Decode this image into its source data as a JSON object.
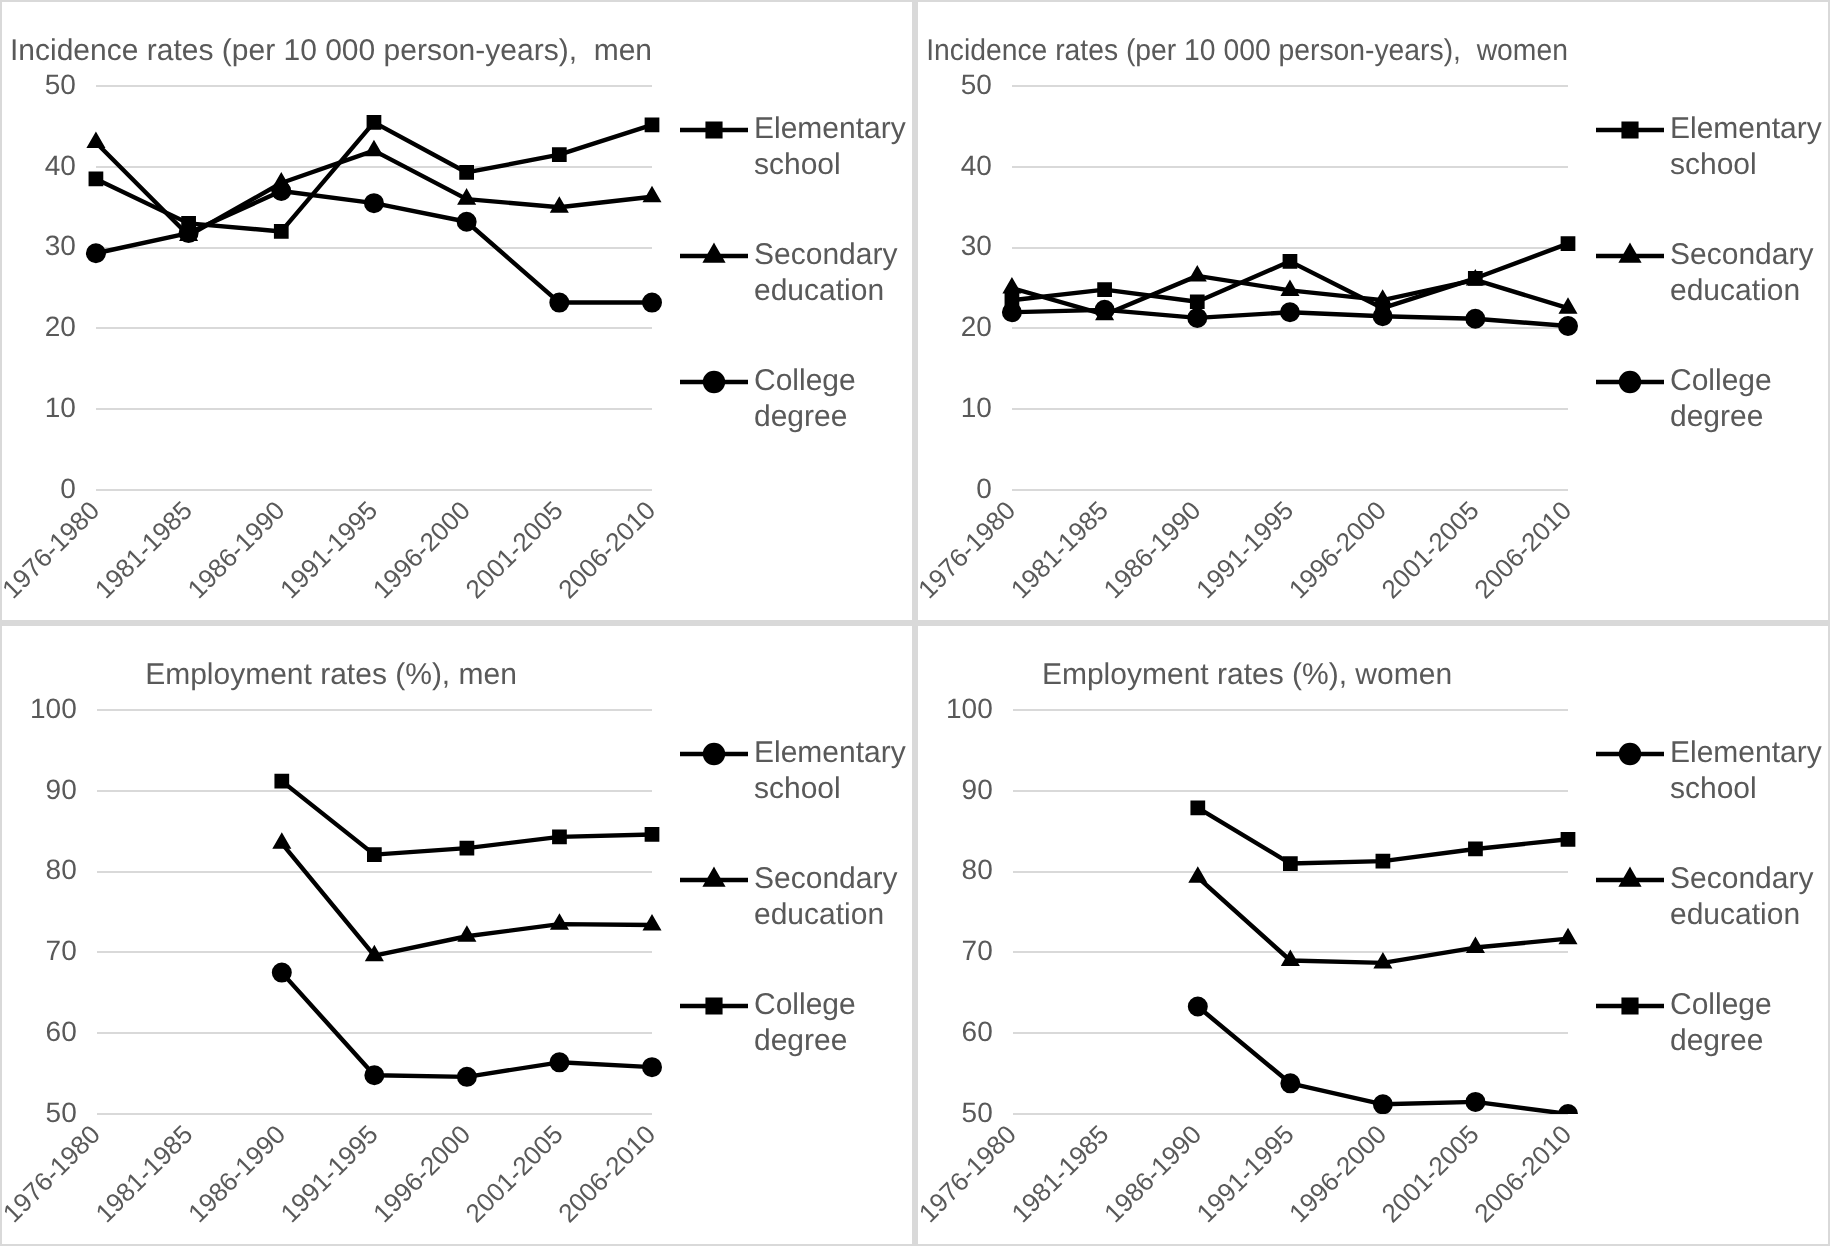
{
  "chart_data": [
    {
      "type": "line",
      "title": "Incidence rates (per 10 000 person-years),  men",
      "categories": [
        "1976-1980",
        "1981-1985",
        "1986-1990",
        "1991-1995",
        "1996-2000",
        "2001-2005",
        "2006-2010"
      ],
      "ylim": [
        0,
        50
      ],
      "yticks": [
        0,
        10,
        20,
        30,
        40,
        50
      ],
      "grid": "y",
      "legend": "right",
      "series": [
        {
          "name": "Elementary school",
          "color": "#000000",
          "marker": "square",
          "values": [
            38.5,
            33,
            32,
            45.5,
            39.3,
            41.5,
            45.2
          ]
        },
        {
          "name": "Secondary education",
          "color": "#000000",
          "marker": "triangle",
          "values": [
            43,
            31.5,
            38,
            42,
            36,
            35,
            36.3
          ]
        },
        {
          "name": "College degree",
          "color": "#000000",
          "marker": "circle",
          "values": [
            29.3,
            31.8,
            37,
            35.5,
            33.2,
            23.2,
            23.2
          ]
        }
      ]
    },
    {
      "type": "line",
      "title": "Incidence rates (per 10 000 person-years),  women",
      "categories": [
        "1976-1980",
        "1981-1985",
        "1986-1990",
        "1991-1995",
        "1996-2000",
        "2001-2005",
        "2006-2010"
      ],
      "ylim": [
        0,
        50
      ],
      "yticks": [
        0,
        10,
        20,
        30,
        40,
        50
      ],
      "grid": "y",
      "legend": "right",
      "series": [
        {
          "name": "Elementary school",
          "color": "#000000",
          "marker": "square",
          "values": [
            23.5,
            24.8,
            23.3,
            28.3,
            22.5,
            26.2,
            30.5
          ]
        },
        {
          "name": "Secondary education",
          "color": "#000000",
          "marker": "triangle",
          "values": [
            25,
            21.7,
            26.5,
            24.7,
            23.5,
            26,
            22.5
          ]
        },
        {
          "name": "College degree",
          "color": "#000000",
          "marker": "circle",
          "values": [
            22,
            22.3,
            21.3,
            22,
            21.5,
            21.2,
            20.3
          ]
        }
      ]
    },
    {
      "type": "line",
      "title": "Employment rates (%), men",
      "categories": [
        "1976-1980",
        "1981-1985",
        "1986-1990",
        "1991-1995",
        "1996-2000",
        "2001-2005",
        "2006-2010"
      ],
      "ylim": [
        50,
        100
      ],
      "yticks": [
        50,
        60,
        70,
        80,
        90,
        100
      ],
      "grid": "y",
      "legend": "right",
      "series": [
        {
          "name": "Elementary school",
          "color": "#000000",
          "marker": "circle",
          "values": [
            null,
            null,
            67.5,
            54.8,
            54.6,
            56.4,
            55.8
          ]
        },
        {
          "name": "Secondary education",
          "color": "#000000",
          "marker": "triangle",
          "values": [
            null,
            null,
            83.5,
            69.6,
            72,
            73.5,
            73.4
          ]
        },
        {
          "name": "College degree",
          "color": "#000000",
          "marker": "square",
          "values": [
            null,
            null,
            91.2,
            82.1,
            82.9,
            84.3,
            84.6
          ]
        }
      ]
    },
    {
      "type": "line",
      "title": "Employment rates (%), women",
      "categories": [
        "1976-1980",
        "1981-1985",
        "1986-1990",
        "1991-1995",
        "1996-2000",
        "2001-2005",
        "2006-2010"
      ],
      "ylim": [
        50,
        100
      ],
      "yticks": [
        50,
        60,
        70,
        80,
        90,
        100
      ],
      "grid": "y",
      "legend": "right",
      "series": [
        {
          "name": "Elementary school",
          "color": "#000000",
          "marker": "circle",
          "values": [
            null,
            null,
            63.3,
            53.8,
            51.2,
            51.5,
            50
          ]
        },
        {
          "name": "Secondary education",
          "color": "#000000",
          "marker": "triangle",
          "values": [
            null,
            null,
            79.3,
            69,
            68.7,
            70.6,
            71.7
          ]
        },
        {
          "name": "College degree",
          "color": "#000000",
          "marker": "square",
          "values": [
            null,
            null,
            87.9,
            81,
            81.3,
            82.8,
            84
          ]
        }
      ]
    }
  ]
}
